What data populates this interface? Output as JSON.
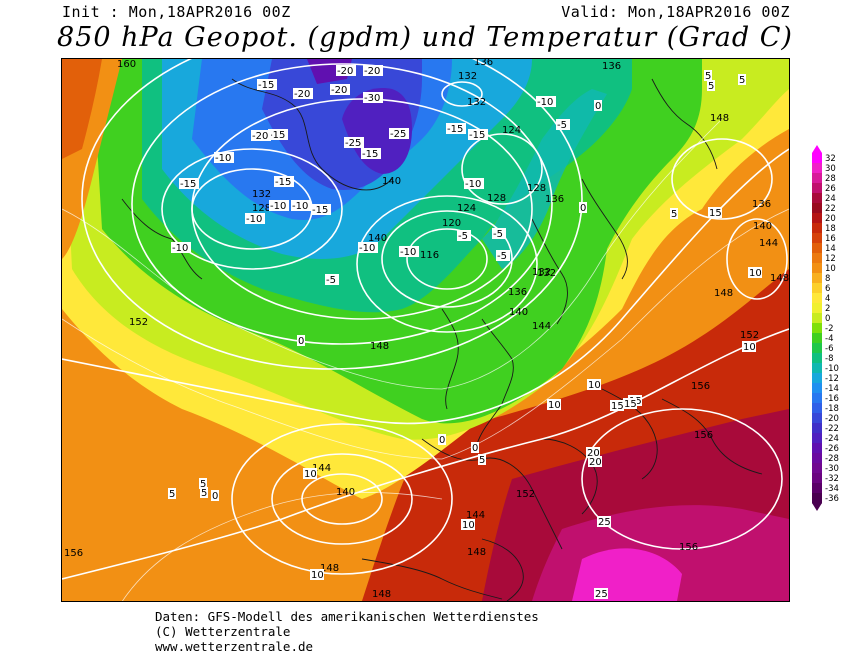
{
  "header": {
    "init": "Init : Mon,18APR2016 00Z",
    "valid": "Valid: Mon,18APR2016 00Z",
    "title": "850 hPa Geopot. (gpdm) und Temperatur (Grad C)"
  },
  "legend": {
    "values": [
      "32",
      "30",
      "28",
      "26",
      "24",
      "22",
      "20",
      "18",
      "16",
      "14",
      "12",
      "10",
      "8",
      "6",
      "4",
      "2",
      "0",
      "-2",
      "-4",
      "-6",
      "-8",
      "-10",
      "-12",
      "-14",
      "-16",
      "-18",
      "-20",
      "-22",
      "-24",
      "-26",
      "-28",
      "-30",
      "-32",
      "-34",
      "-36"
    ],
    "colors": [
      "#ff00ff",
      "#f020c8",
      "#d81a9a",
      "#c0106e",
      "#a80a3a",
      "#980a1e",
      "#b41414",
      "#c82a0a",
      "#d6420a",
      "#e2600a",
      "#ec7a10",
      "#f29014",
      "#f8b020",
      "#fcd02c",
      "#ffe83a",
      "#f0f030",
      "#c8ec20",
      "#7fe00a",
      "#40d020",
      "#20c84a",
      "#10c080",
      "#10b8b0",
      "#18a8dc",
      "#2090f0",
      "#2878f0",
      "#3060e8",
      "#3848d8",
      "#4030c8",
      "#5020c0",
      "#6010b0",
      "#6a0aa0",
      "#700890",
      "#6a0480",
      "#5a0068",
      "#4a0050"
    ]
  },
  "map": {
    "geopotential_labels": [
      "160",
      "136",
      "132",
      "132",
      "136",
      "138",
      "140",
      "140",
      "132",
      "128",
      "124",
      "128",
      "128",
      "136",
      "132",
      "124",
      "120",
      "116",
      "132",
      "136",
      "140",
      "144",
      "148",
      "144",
      "152",
      "148",
      "140",
      "144",
      "148",
      "136",
      "140",
      "144",
      "148",
      "152",
      "156",
      "156",
      "156",
      "152",
      "148",
      "156",
      "148",
      "148"
    ],
    "temperature_labels": [
      "-20",
      "-20",
      "-20",
      "-15",
      "-20",
      "-30",
      "-25",
      "-25",
      "-15",
      "-20",
      "-15",
      "-10",
      "-15",
      "-15",
      "-10",
      "-10",
      "-15",
      "-10",
      "-10",
      "-10",
      "-10",
      "-5",
      "-5",
      "-5",
      "-10",
      "-15",
      "-15",
      "-10",
      "-5",
      "0",
      "0",
      "5",
      "5",
      "10",
      "10",
      "10",
      "15",
      "15",
      "15",
      "20",
      "20",
      "25",
      "25",
      "10",
      "5",
      "5",
      "0",
      "0",
      "5",
      "10",
      "10",
      "5",
      "5",
      "10",
      "15",
      "-5",
      "0",
      "5",
      "0"
    ]
  },
  "footer": {
    "line1": "Daten: GFS-Modell des amerikanischen Wetterdienstes",
    "line2": "(C) Wetterzentrale",
    "line3": "www.wetterzentrale.de"
  }
}
